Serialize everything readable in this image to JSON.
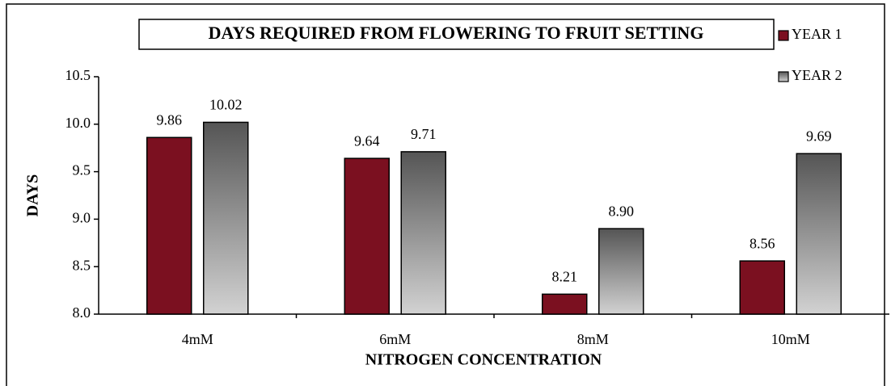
{
  "chart_data": {
    "type": "bar",
    "title": "DAYS REQUIRED FROM FLOWERING TO FRUIT SETTING",
    "x_label": "NITROGEN CONCENTRATION",
    "y_label": "DAYS",
    "categories": [
      "4mM",
      "6mM",
      "8mM",
      "10mM"
    ],
    "series": [
      {
        "name": "YEAR 1",
        "color": "#7b1020",
        "values": [
          9.86,
          9.64,
          8.21,
          8.56
        ],
        "value_labels": [
          "9.86",
          "9.64",
          "8.21",
          "8.56"
        ]
      },
      {
        "name": "YEAR 2",
        "color": [
          "#555555",
          "#d2d2d2"
        ],
        "values": [
          10.02,
          9.71,
          8.9,
          9.69
        ],
        "value_labels": [
          "10.02",
          "9.71",
          "8.90",
          "9.69"
        ]
      }
    ],
    "ylim": [
      8.0,
      10.5
    ],
    "yticks": [
      {
        "value": 8.0,
        "label": "8.0"
      },
      8.5,
      {
        "value": 9.0,
        "label": "9.0"
      },
      9.5,
      {
        "value": 10.0,
        "label": "10.0"
      },
      10.5
    ],
    "legend": "top-right"
  }
}
